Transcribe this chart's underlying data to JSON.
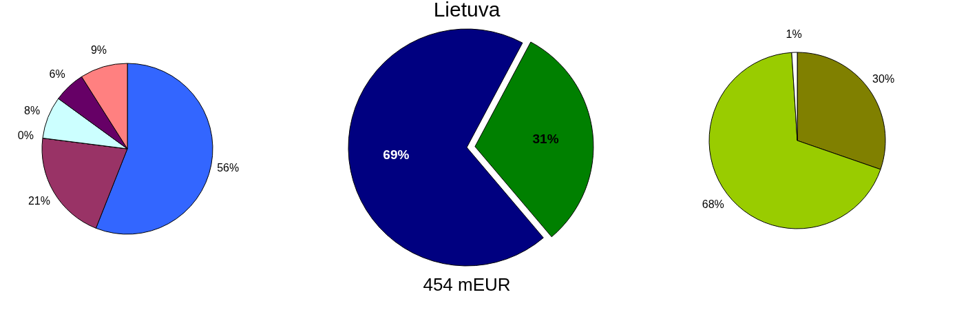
{
  "chart_data": [
    {
      "type": "pie",
      "categories": [
        null,
        null,
        null,
        null,
        null,
        null
      ],
      "values": [
        56,
        21,
        0,
        8,
        6,
        9
      ],
      "colors": [
        "#3366ff",
        "#993366",
        "#ffffcc",
        "#ccffff",
        "#660066",
        "#ff8080"
      ],
      "value_labels": [
        "56%",
        "21%",
        "0%",
        "8%",
        "6%",
        "9%"
      ]
    },
    {
      "type": "pie",
      "title": "Lietuva",
      "categories": [
        null,
        null
      ],
      "values": [
        31,
        69
      ],
      "colors": [
        "#008000",
        "#000080"
      ],
      "value_labels": [
        "31%",
        "69%"
      ],
      "annotations": [
        "454 mEUR"
      ]
    },
    {
      "type": "pie",
      "categories": [
        null,
        null,
        null
      ],
      "values": [
        30,
        68,
        1
      ],
      "colors": [
        "#808000",
        "#99cc00",
        "#ffffff"
      ],
      "value_labels": [
        "30%",
        "68%",
        "1%"
      ]
    }
  ]
}
